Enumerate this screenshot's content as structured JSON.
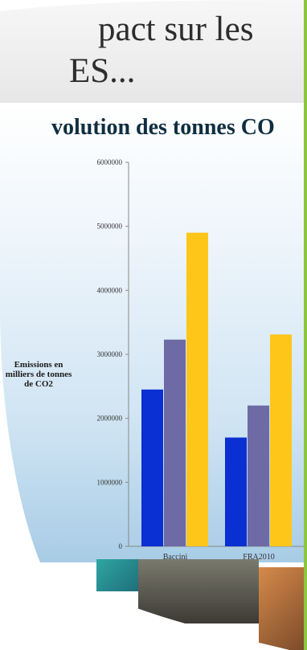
{
  "title": {
    "line1": "pact sur les",
    "line2": "ES..."
  },
  "chart_data": {
    "type": "bar",
    "title": "volution des tonnes CO",
    "ylabel": "Emissions en milliers de tonnes de CO2",
    "xlabel": "",
    "ylim": [
      0,
      6000000
    ],
    "yticks": [
      0,
      1000000,
      2000000,
      3000000,
      4000000,
      5000000,
      6000000
    ],
    "categories": [
      "Baccini",
      "FRA2010"
    ],
    "series": [
      {
        "values": [
          2450000,
          1700000
        ],
        "color": "#0a2fd2"
      },
      {
        "values": [
          3230000,
          2200000
        ],
        "color": "#6e6aa6"
      },
      {
        "values": [
          4900000,
          3310000
        ],
        "color": "#ffc61a"
      }
    ],
    "grid": false,
    "legend": "none"
  },
  "colors": {
    "title_text": "#2d2d2d",
    "chart_title_text": "#0f2e40",
    "green_box": "#8cc63f"
  }
}
